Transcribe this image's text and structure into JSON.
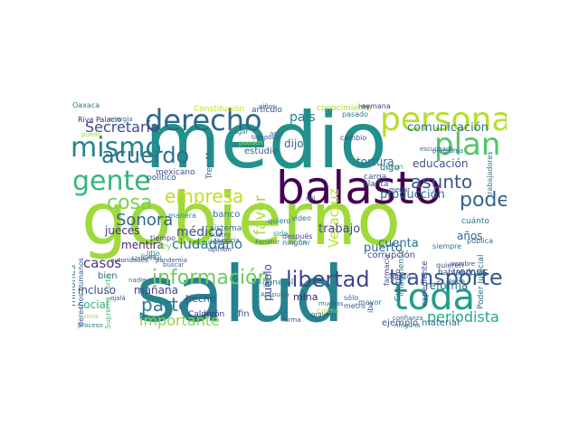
{
  "wordcloud": {
    "words": [
      {
        "text": "gobierno",
        "color": "#9fd93a"
      },
      {
        "text": "medio",
        "color": "#21918c"
      },
      {
        "text": "salud",
        "color": "#26828e"
      },
      {
        "text": "balasto",
        "color": "#440154"
      },
      {
        "text": "persona",
        "color": "#b5de2b"
      },
      {
        "text": "derecho",
        "color": "#30678d"
      },
      {
        "text": "mismo",
        "color": "#25848e"
      },
      {
        "text": "gente",
        "color": "#35b779"
      },
      {
        "text": "plan",
        "color": "#52c569"
      },
      {
        "text": "toda",
        "color": "#1f9f88"
      },
      {
        "text": "información",
        "color": "#6ccd5a"
      },
      {
        "text": "libertad",
        "color": "#414487"
      },
      {
        "text": "transporte",
        "color": "#38588c"
      },
      {
        "text": "acuerdo",
        "color": "#2c728e"
      },
      {
        "text": "cosa",
        "color": "#7ad151"
      },
      {
        "text": "empresa",
        "color": "#bddf26"
      },
      {
        "text": "asunto",
        "color": "#39568c"
      },
      {
        "text": "poder",
        "color": "#33638d"
      },
      {
        "text": "Sonora",
        "color": "#31688e"
      },
      {
        "text": "parte",
        "color": "#2a788e"
      },
      {
        "text": "importante",
        "color": "#8fd744"
      },
      {
        "text": "periodista",
        "color": "#22a884"
      },
      {
        "text": "Secretaría",
        "color": "#3e4a89"
      },
      {
        "text": "comunicación",
        "color": "#2d708e"
      },
      {
        "text": "país",
        "color": "#287c8e"
      },
      {
        "text": "casos",
        "color": "#453781"
      },
      {
        "text": "educación",
        "color": "#3b528b"
      },
      {
        "text": "favor",
        "color": "#a8db34"
      },
      {
        "text": "mentira",
        "color": "#482878"
      },
      {
        "text": "jueces",
        "color": "#472d7b"
      },
      {
        "text": "médico",
        "color": "#3c4f8a"
      },
      {
        "text": "ciudadano",
        "color": "#2a768e"
      },
      {
        "text": "Veracruz",
        "color": "#bddf26"
      },
      {
        "text": "producción",
        "color": "#2c738e"
      },
      {
        "text": "puerto",
        "color": "#31688e"
      },
      {
        "text": "cuenta",
        "color": "#2e6e8e"
      },
      {
        "text": "trabajo",
        "color": "#3e4c8a"
      },
      {
        "text": "tortura",
        "color": "#2f6c8e"
      },
      {
        "text": "mañana",
        "color": "#414487"
      },
      {
        "text": "social",
        "color": "#2db27d"
      },
      {
        "text": "reforma",
        "color": "#2e6f8e"
      },
      {
        "text": "vemos",
        "color": "#38598c"
      },
      {
        "text": "años",
        "color": "#30678d"
      },
      {
        "text": "millones",
        "color": "#2a788e"
      },
      {
        "text": "incluso",
        "color": "#3b528b"
      },
      {
        "text": "pueblo",
        "color": "#3f4889"
      },
      {
        "text": "hecho",
        "color": "#3d4d8a"
      },
      {
        "text": "mina",
        "color": "#482173"
      },
      {
        "text": "dijo",
        "color": "#31688e"
      },
      {
        "text": "estudio",
        "color": "#33638d"
      },
      {
        "text": "sistema",
        "color": "#2e6e8e"
      },
      {
        "text": "banco",
        "color": "#2d718e"
      },
      {
        "text": "Constitución",
        "color": "#c2df23"
      },
      {
        "text": "artículo",
        "color": "#3b528b"
      },
      {
        "text": "conocimiento",
        "color": "#a5db36"
      },
      {
        "text": "semana",
        "color": "#443983"
      },
      {
        "text": "corrupción",
        "color": "#3e4989"
      },
      {
        "text": "material",
        "color": "#31688e"
      },
      {
        "text": "ejemplo",
        "color": "#38598c"
      },
      {
        "text": "bien",
        "color": "#34618d"
      },
      {
        "text": "manera",
        "color": "#228c8d"
      },
      {
        "text": "tiempo",
        "color": "#3f4889"
      },
      {
        "text": "ley",
        "color": "#84d44b"
      },
      {
        "text": "general",
        "color": "#2c728e"
      },
      {
        "text": "fin",
        "color": "#3b528b"
      },
      {
        "text": "Calderón",
        "color": "#472d7b"
      },
      {
        "text": "Tren Maya",
        "color": "#2f6c8e"
      },
      {
        "text": "video",
        "color": "#2a788e"
      },
      {
        "text": "después",
        "color": "#3e4a89"
      },
      {
        "text": "ningún",
        "color": "#31688e"
      },
      {
        "text": "sido",
        "color": "#20a386"
      },
      {
        "text": "Poder Judicial",
        "color": "#2e6e8e"
      },
      {
        "text": "digo",
        "color": "#3b528b"
      },
      {
        "text": "mexicano",
        "color": "#3a538b"
      },
      {
        "text": "político",
        "color": "#34608d"
      },
      {
        "text": "planta",
        "color": "#3b518b"
      },
      {
        "text": "carga",
        "color": "#38588c"
      },
      {
        "text": "joven",
        "color": "#35b779"
      },
      {
        "text": "cambio",
        "color": "#3f4788"
      },
      {
        "text": "pasado",
        "color": "#2a778e"
      },
      {
        "text": "derechos humanos",
        "color": "#39568c"
      },
      {
        "text": "Riva Palacio",
        "color": "#482475"
      },
      {
        "text": "Suprema Corte",
        "color": "#45bf70"
      },
      {
        "text": "trabajadores",
        "color": "#2e6e8e"
      },
      {
        "text": "quiero",
        "color": "#2a778e"
      },
      {
        "text": "quieren",
        "color": "#3b528b"
      },
      {
        "text": "cuánto",
        "color": "#2a788e"
      },
      {
        "text": "debe",
        "color": "#2d708e"
      },
      {
        "text": "hablando",
        "color": "#3b528b"
      },
      {
        "text": "expediente",
        "color": "#3f4889"
      },
      {
        "text": "imagínense",
        "color": "#2a788e"
      },
      {
        "text": "Guerrero",
        "color": "#3e4a89"
      },
      {
        "text": "farmacia",
        "color": "#443983"
      },
      {
        "text": "mayor",
        "color": "#2c728e"
      },
      {
        "text": "sólo",
        "color": "#38588c"
      },
      {
        "text": "metro",
        "color": "#3b528b"
      },
      {
        "text": "pública",
        "color": "#31688e"
      },
      {
        "text": "siempre",
        "color": "#2a788e"
      },
      {
        "text": "nadie",
        "color": "#2d718e"
      },
      {
        "text": "opinión",
        "color": "#3e4c8a"
      },
      {
        "text": "dónde",
        "color": "#2e6f8e"
      },
      {
        "text": "escuchado",
        "color": "#33638d"
      },
      {
        "text": "programa",
        "color": "#2c728e"
      },
      {
        "text": "hoy",
        "color": "#2e6e8e"
      },
      {
        "text": "puedo",
        "color": "#9fda3a"
      },
      {
        "text": "tampoco",
        "color": "#3a538b"
      },
      {
        "text": "pagar",
        "color": "#2a788e"
      },
      {
        "text": "hay",
        "color": "#22a884"
      },
      {
        "text": "niños",
        "color": "#3b528b"
      },
      {
        "text": "aquí",
        "color": "#2c728e"
      },
      {
        "text": "mil",
        "color": "#38588c"
      },
      {
        "text": "mentir",
        "color": "#3f4889"
      },
      {
        "text": "agosto",
        "color": "#3b528b"
      },
      {
        "text": "muchas",
        "color": "#31688e"
      },
      {
        "text": "grave",
        "color": "#3e4c8a"
      },
      {
        "text": "cuatro",
        "color": "#2e6e8e"
      },
      {
        "text": "linea",
        "color": "#3a538b"
      },
      {
        "text": "litio",
        "color": "#2a788e"
      },
      {
        "text": "pandemia",
        "color": "#3b528b"
      },
      {
        "text": "buscar",
        "color": "#2c728e"
      },
      {
        "text": "Universal",
        "color": "#2a788e"
      },
      {
        "text": "autoridades",
        "color": "#3b528b"
      },
      {
        "text": "Justicia",
        "color": "#38588c"
      },
      {
        "text": "Fonatur",
        "color": "#2e6f8e"
      },
      {
        "text": "ojalá",
        "color": "#3f4889"
      },
      {
        "text": "proceso",
        "color": "#2a788e"
      },
      {
        "text": "zona",
        "color": "#a0da39"
      },
      {
        "text": "iba",
        "color": "#3e4c8a"
      },
      {
        "text": "Acapulco",
        "color": "#2d708e"
      },
      {
        "text": "pueden",
        "color": "#b8de29"
      },
      {
        "text": "forma",
        "color": "#3b528b"
      },
      {
        "text": "ninguna",
        "color": "#2c728e"
      },
      {
        "text": "confianza",
        "color": "#31688e"
      },
      {
        "text": "nombre",
        "color": "#3f4889"
      },
      {
        "text": "energía",
        "color": "#2e6e8e"
      },
      {
        "text": "Colima",
        "color": "#ade030"
      },
      {
        "text": "Oaxaca",
        "color": "#2a778e"
      }
    ]
  }
}
